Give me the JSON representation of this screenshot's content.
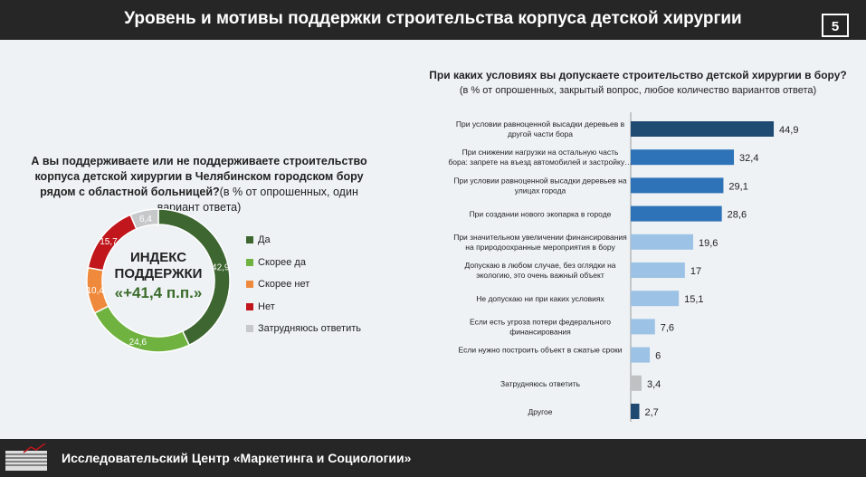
{
  "header": {
    "title": "Уровень и мотивы поддержки строительства корпуса детской хирургии",
    "page": "5"
  },
  "footer": {
    "org": "Исследовательский Центр «Маркетинга и Социологии»",
    "logo_text": "МарС"
  },
  "chart_data": [
    {
      "type": "pie",
      "donut": true,
      "title": "А вы поддерживаете или не поддерживаете строительство корпуса детской хирургии в Челябинском городском бору  рядом с областной больницей?",
      "subtitle": "(в  % от опрошенных, один вариант ответа)",
      "center_label": [
        "ИНДЕКС",
        "ПОДДЕРЖКИ"
      ],
      "center_value": "«+41,4 п.п.»",
      "legend_placement": "right",
      "slices": [
        {
          "name": "Да",
          "value": 42.9,
          "label": "42,9",
          "color": "#3d6630"
        },
        {
          "name": "Скорее да",
          "value": 24.6,
          "label": "24,6",
          "color": "#6fb23f"
        },
        {
          "name": "Скорее нет",
          "value": 10.4,
          "label": "10,4",
          "color": "#ef8a3c"
        },
        {
          "name": "Нет",
          "value": 15.7,
          "label": "15,7",
          "color": "#c0161c"
        },
        {
          "name": "Затрудняюсь ответить",
          "value": 6.4,
          "label": "6,4",
          "color": "#c6c8ca"
        }
      ]
    },
    {
      "type": "bar",
      "orientation": "horizontal",
      "title": "При каких условиях вы допускаете строительство детской хирургии в бору?",
      "subtitle": "(в  % от опрошенных, закрытый вопрос, любое количество вариантов ответа)",
      "categories": [
        "При условии равноценной высадки деревьев в другой части бора",
        "При снижении нагрузки на остальную часть бора: запрете на въезд автомобилей и застройку…",
        "При условии равноценной высадки деревьев на улицах города",
        "При создании нового экопарка в городе",
        "При значительном увеличении финансирования на природоохранные мероприятия в бору",
        "Допускаю в любом случае, без оглядки на экологию, это очень важный объект",
        "Не допускаю ни при каких условиях",
        "Если есть угроза потери федерального финансирования",
        "Если нужно построить объект в сжатые сроки",
        "Затрудняюсь ответить",
        "Другое"
      ],
      "values": [
        44.9,
        32.4,
        29.1,
        28.6,
        19.6,
        17,
        15.1,
        7.6,
        6,
        3.4,
        2.7
      ],
      "labels": [
        "44,9",
        "32,4",
        "29,1",
        "28,6",
        "19,6",
        "17",
        "15,1",
        "7,6",
        "6",
        "3,4",
        "2,7"
      ],
      "colors": [
        "#1f4a72",
        "#2e72b8",
        "#2e72b8",
        "#2e72b8",
        "#9cc2e6",
        "#9cc2e6",
        "#9cc2e6",
        "#9cc2e6",
        "#9cc2e6",
        "#bfc1c3",
        "#1f4a72"
      ]
    }
  ]
}
